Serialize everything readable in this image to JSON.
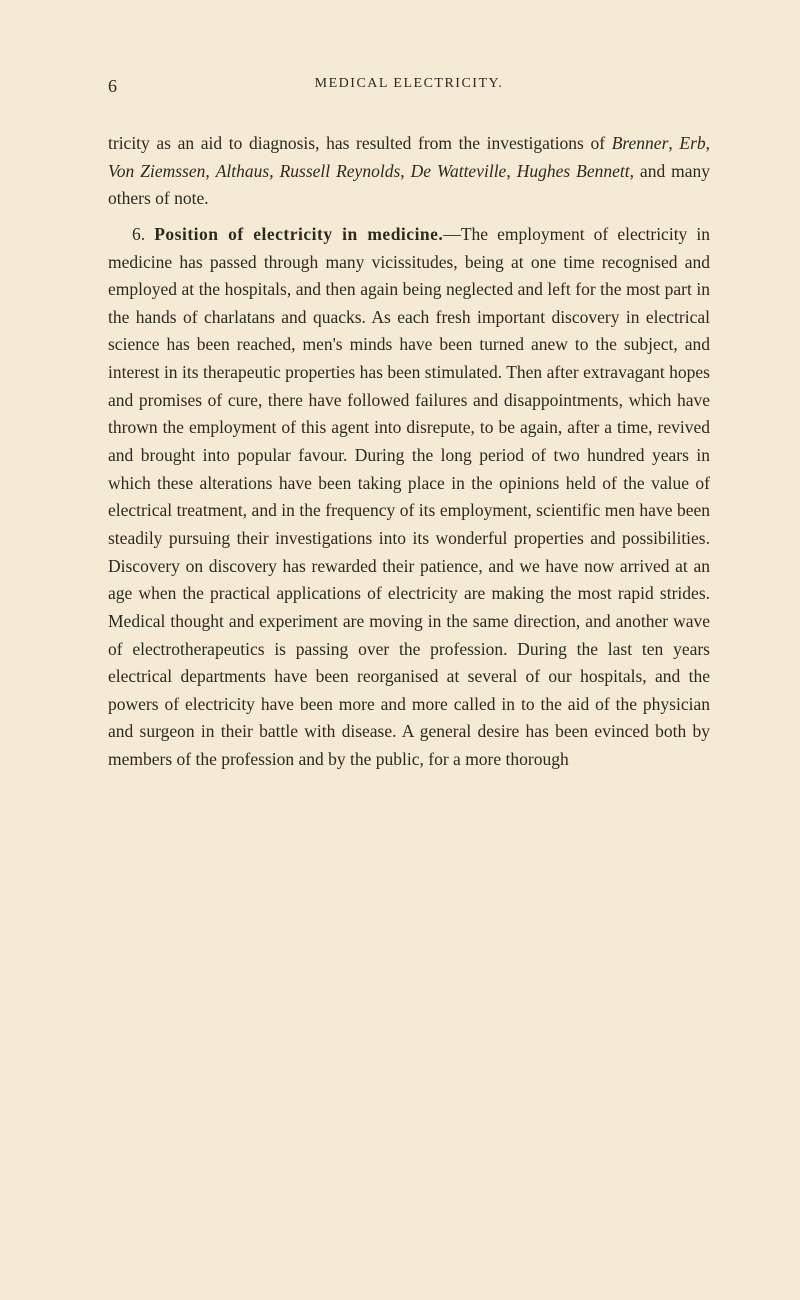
{
  "page": {
    "number": "6",
    "header": "MEDICAL ELECTRICITY.",
    "background_color": "#f5ebd4",
    "text_color": "#2a2a1f"
  },
  "para1": {
    "t1": "tricity as an aid to diagnosis, has resulted from the investigations of ",
    "i1": "Brenner",
    "t2": ", ",
    "i2": "Erb",
    "t3": ", ",
    "i3": "Von Ziemssen",
    "t4": ", ",
    "i4": "Althaus",
    "t5": ", ",
    "i5": "Russell Reynolds",
    "t6": ", ",
    "i6": "De Watteville",
    "t7": ", ",
    "i7": "Hughes Bennett",
    "t8": ", and many others of note."
  },
  "para2": {
    "num": "6. ",
    "bold": "Position of electricity in medicine.",
    "body": "—The employment of electricity in medicine has passed through many vicissitudes, being at one time recognised and employed at the hospitals, and then again being neglected and left for the most part in the hands of charlatans and quacks. As each fresh important discovery in electrical science has been reached, men's minds have been turned anew to the subject, and interest in its therapeutic properties has been stimulated. Then after extravagant hopes and promises of cure, there have followed failures and disappointments, which have thrown the employment of this agent into disrepute, to be again, after a time, revived and brought into popular favour. During the long period of two hundred years in which these alterations have been taking place in the opinions held of the value of electrical treatment, and in the frequency of its employment, scientific men have been steadily pursuing their investigations into its wonderful properties and possibilities. Discovery on discovery has rewarded their patience, and we have now arrived at an age when the practical applications of electricity are making the most rapid strides. Medical thought and experiment are moving in the same direction, and another wave of electrotherapeutics is passing over the profession. During the last ten years electrical departments have been reorganised at several of our hospitals, and the powers of electricity have been more and more called in to the aid of the physician and surgeon in their battle with disease. A general desire has been evinced both by members of the profession and by the public, for a more thorough"
  }
}
